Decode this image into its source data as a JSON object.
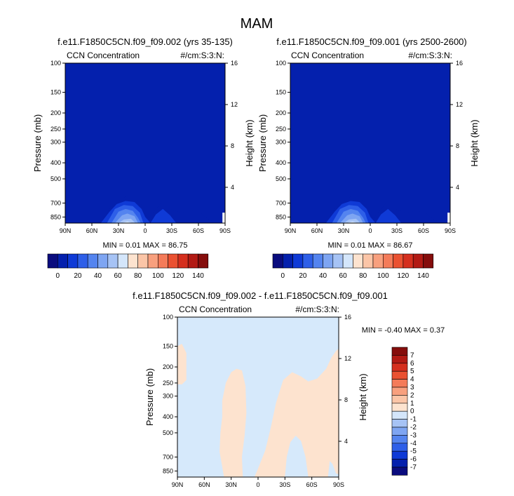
{
  "figure_title": "MAM",
  "colors": {
    "blues": [
      "#0a0c7e",
      "#0420ad",
      "#0f3ad6",
      "#2e5fe8",
      "#5484ef",
      "#7ea5f2",
      "#a6c3f5",
      "#d4e6fb"
    ],
    "reds": [
      "#fde3cf",
      "#fbc5a7",
      "#f8a07e",
      "#f47b59",
      "#ea5131",
      "#d52f1e",
      "#b21a14",
      "#850d0c"
    ],
    "background_field": "#0420ad",
    "diff_negative": "#d6e9fb",
    "diff_positive": "#fde3cf"
  },
  "chart_data": [
    {
      "type": "heatmap",
      "title": "f.e11.F1850C5CN.f09_f09.002 (yrs 35-135)",
      "left_label": "CCN Concentration",
      "right_label": "#/cm:S:3:N:",
      "ylabel": "Pressure (mb)",
      "y2label": "Height (km)",
      "x_ticks": [
        "90N",
        "60N",
        "30N",
        "0",
        "30S",
        "60S",
        "90S"
      ],
      "x_values": [
        90,
        60,
        30,
        0,
        -30,
        -60,
        -90
      ],
      "y_ticks": [
        "100",
        "150",
        "200",
        "250",
        "300",
        "400",
        "500",
        "700",
        "850"
      ],
      "y_values": [
        100,
        150,
        200,
        250,
        300,
        400,
        500,
        700,
        850
      ],
      "y2_ticks": [
        "16",
        "12",
        "8",
        "4"
      ],
      "y2_values": [
        16,
        12,
        8,
        4
      ],
      "x_range": [
        90,
        -90
      ],
      "y_range": [
        100,
        925
      ],
      "stats": "MIN =  0.01  MAX = 86.75",
      "min": 0.01,
      "max": 86.75,
      "contour_ceilings": [
        [
          [
            58,
            925
          ],
          [
            48,
            885
          ],
          [
            40,
            760
          ],
          [
            30,
            680
          ],
          [
            22,
            640
          ],
          [
            12,
            640
          ],
          [
            5,
            700
          ],
          [
            2,
            800
          ],
          [
            -4,
            865
          ],
          [
            -10,
            780
          ],
          [
            -18,
            700
          ],
          [
            -28,
            760
          ],
          [
            -40,
            800
          ],
          [
            -52,
            780
          ],
          [
            -62,
            800
          ],
          [
            -70,
            870
          ],
          [
            -80,
            925
          ]
        ],
        [
          [
            50,
            925
          ],
          [
            40,
            790
          ],
          [
            32,
            710
          ],
          [
            22,
            680
          ],
          [
            12,
            690
          ],
          [
            4,
            760
          ],
          [
            0,
            850
          ],
          [
            -6,
            925
          ],
          [
            -12,
            820
          ],
          [
            -20,
            760
          ],
          [
            -28,
            830
          ],
          [
            -35,
            925
          ]
        ],
        [
          [
            43,
            925
          ],
          [
            34,
            760
          ],
          [
            24,
            720
          ],
          [
            14,
            730
          ],
          [
            6,
            800
          ],
          [
            2,
            925
          ]
        ],
        [
          [
            38,
            925
          ],
          [
            30,
            790
          ],
          [
            22,
            760
          ],
          [
            14,
            780
          ],
          [
            8,
            860
          ],
          [
            5,
            925
          ]
        ],
        [
          [
            34,
            925
          ],
          [
            26,
            830
          ],
          [
            20,
            810
          ],
          [
            12,
            840
          ],
          [
            8,
            925
          ]
        ],
        [
          [
            30,
            925
          ],
          [
            24,
            880
          ],
          [
            16,
            870
          ],
          [
            11,
            925
          ]
        ],
        [
          [
            27,
            925
          ],
          [
            20,
            905
          ],
          [
            14,
            925
          ]
        ]
      ]
    },
    {
      "type": "heatmap",
      "title": "f.e11.F1850C5CN.f09_f09.001 (yrs 2500-2600)",
      "left_label": "CCN Concentration",
      "right_label": "#/cm:S:3:N:",
      "ylabel": "Pressure (mb)",
      "y2label": "Height (km)",
      "x_ticks": [
        "90N",
        "60N",
        "30N",
        "0",
        "30S",
        "60S",
        "90S"
      ],
      "x_values": [
        90,
        60,
        30,
        0,
        -30,
        -60,
        -90
      ],
      "y_ticks": [
        "100",
        "150",
        "200",
        "250",
        "300",
        "400",
        "500",
        "700",
        "850"
      ],
      "y_values": [
        100,
        150,
        200,
        250,
        300,
        400,
        500,
        700,
        850
      ],
      "y2_ticks": [
        "16",
        "12",
        "8",
        "4"
      ],
      "y2_values": [
        16,
        12,
        8,
        4
      ],
      "x_range": [
        90,
        -90
      ],
      "y_range": [
        100,
        925
      ],
      "stats": "MIN =  0.01  MAX = 86.67",
      "min": 0.01,
      "max": 86.67,
      "contour_ceilings": [
        [
          [
            58,
            925
          ],
          [
            48,
            885
          ],
          [
            40,
            760
          ],
          [
            30,
            680
          ],
          [
            22,
            640
          ],
          [
            12,
            640
          ],
          [
            5,
            700
          ],
          [
            2,
            800
          ],
          [
            -4,
            865
          ],
          [
            -10,
            780
          ],
          [
            -18,
            700
          ],
          [
            -28,
            760
          ],
          [
            -40,
            800
          ],
          [
            -52,
            780
          ],
          [
            -62,
            800
          ],
          [
            -70,
            870
          ],
          [
            -80,
            925
          ]
        ],
        [
          [
            50,
            925
          ],
          [
            40,
            790
          ],
          [
            32,
            710
          ],
          [
            22,
            680
          ],
          [
            12,
            690
          ],
          [
            4,
            760
          ],
          [
            0,
            850
          ],
          [
            -6,
            925
          ],
          [
            -12,
            820
          ],
          [
            -20,
            760
          ],
          [
            -28,
            830
          ],
          [
            -35,
            925
          ]
        ],
        [
          [
            43,
            925
          ],
          [
            34,
            760
          ],
          [
            24,
            720
          ],
          [
            14,
            730
          ],
          [
            6,
            800
          ],
          [
            2,
            925
          ]
        ],
        [
          [
            38,
            925
          ],
          [
            30,
            790
          ],
          [
            22,
            760
          ],
          [
            14,
            780
          ],
          [
            8,
            860
          ],
          [
            5,
            925
          ]
        ],
        [
          [
            34,
            925
          ],
          [
            26,
            830
          ],
          [
            20,
            810
          ],
          [
            12,
            840
          ],
          [
            8,
            925
          ]
        ],
        [
          [
            30,
            925
          ],
          [
            24,
            880
          ],
          [
            16,
            870
          ],
          [
            11,
            925
          ]
        ],
        [
          [
            27,
            925
          ],
          [
            20,
            905
          ],
          [
            14,
            925
          ]
        ]
      ]
    },
    {
      "type": "heatmap",
      "title": "f.e11.F1850C5CN.f09_f09.002 - f.e11.F1850C5CN.f09_f09.001",
      "left_label": "CCN Concentration",
      "right_label": "#/cm:S:3:N:",
      "ylabel": "Pressure (mb)",
      "y2label": "Height (km)",
      "x_ticks": [
        "90N",
        "60N",
        "30N",
        "0",
        "30S",
        "60S",
        "90S"
      ],
      "x_values": [
        90,
        60,
        30,
        0,
        -30,
        -60,
        -90
      ],
      "y_ticks": [
        "100",
        "150",
        "200",
        "250",
        "300",
        "400",
        "500",
        "700",
        "850"
      ],
      "y_values": [
        100,
        150,
        200,
        250,
        300,
        400,
        500,
        700,
        850
      ],
      "y2_ticks": [
        "16",
        "12",
        "8",
        "4"
      ],
      "y2_values": [
        16,
        12,
        8,
        4
      ],
      "x_range": [
        90,
        -90
      ],
      "y_range": [
        100,
        925
      ],
      "stats": "MIN = -0.40  MAX =  0.37",
      "min": -0.4,
      "max": 0.37,
      "positive_regions": [
        [
          [
            90,
            150
          ],
          [
            85,
            145
          ],
          [
            80,
            165
          ],
          [
            80,
            240
          ],
          [
            85,
            255
          ],
          [
            90,
            255
          ]
        ],
        [
          [
            40,
            320
          ],
          [
            36,
            250
          ],
          [
            30,
            215
          ],
          [
            24,
            205
          ],
          [
            18,
            210
          ],
          [
            14,
            260
          ],
          [
            13,
            380
          ],
          [
            15,
            520
          ],
          [
            18,
            700
          ],
          [
            17,
            925
          ],
          [
            38,
            925
          ],
          [
            40,
            800
          ],
          [
            43,
            650
          ],
          [
            42,
            500
          ],
          [
            40,
            400
          ]
        ],
        [
          [
            4,
            925
          ],
          [
            0,
            820
          ],
          [
            -8,
            640
          ],
          [
            -14,
            470
          ],
          [
            -20,
            330
          ],
          [
            -28,
            240
          ],
          [
            -38,
            215
          ],
          [
            -48,
            228
          ],
          [
            -56,
            245
          ],
          [
            -66,
            235
          ],
          [
            -76,
            205
          ],
          [
            -82,
            175
          ],
          [
            -87,
            160
          ],
          [
            -90,
            155
          ],
          [
            -90,
            890
          ],
          [
            -87,
            880
          ],
          [
            -83,
            770
          ],
          [
            -80,
            740
          ],
          [
            -78,
            925
          ],
          [
            -56,
            925
          ],
          [
            -53,
            700
          ],
          [
            -48,
            560
          ],
          [
            -42,
            520
          ],
          [
            -36,
            570
          ],
          [
            -32,
            700
          ],
          [
            -30,
            925
          ]
        ]
      ],
      "colorbar_labels": [
        "7",
        "6",
        "5",
        "4",
        "3",
        "2",
        "1",
        "0",
        "-1",
        "-2",
        "-3",
        "-4",
        "-5",
        "-6",
        "-7"
      ]
    }
  ],
  "colorbar_main": {
    "labels": [
      "0",
      "20",
      "40",
      "60",
      "80",
      "100",
      "120",
      "140"
    ],
    "values": [
      0,
      20,
      40,
      60,
      80,
      100,
      120,
      140
    ],
    "boundaries": [
      0,
      10,
      20,
      30,
      40,
      50,
      60,
      70,
      80,
      90,
      100,
      110,
      120,
      130,
      140
    ]
  }
}
